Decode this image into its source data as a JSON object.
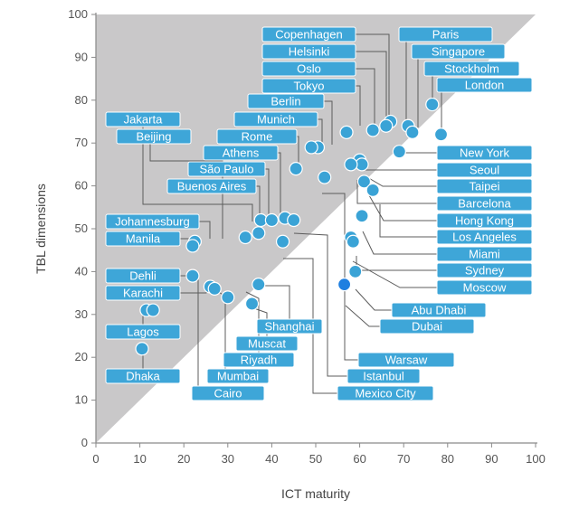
{
  "chart_data": {
    "type": "scatter",
    "xlabel": "ICT maturity",
    "ylabel": "TBL dimensions",
    "xlim": [
      0,
      100
    ],
    "ylim": [
      0,
      100
    ],
    "xticks": [
      0,
      10,
      20,
      30,
      40,
      50,
      60,
      70,
      80,
      90,
      100
    ],
    "yticks": [
      0,
      10,
      20,
      30,
      40,
      50,
      60,
      70,
      80,
      90,
      100
    ],
    "grid": false,
    "shaded_region": "above diagonal y = x (grey triangle)",
    "colors": {
      "point": "#3aa3d6",
      "label_fill": "#3ea6d8",
      "highlight_point": "#1f7fe0",
      "region": "#c9c8c9",
      "axis": "#8a8a8a",
      "connector": "#5c5c5c"
    },
    "points": [
      {
        "name": "Copenhagen",
        "x": 67,
        "y": 75
      },
      {
        "name": "Helsinki",
        "x": 66,
        "y": 74
      },
      {
        "name": "Oslo",
        "x": 63,
        "y": 73
      },
      {
        "name": "Tokyo",
        "x": 57,
        "y": 72.5
      },
      {
        "name": "Berlin",
        "x": 50.5,
        "y": 69
      },
      {
        "name": "Munich",
        "x": 49,
        "y": 69
      },
      {
        "name": "Rome",
        "x": 45.5,
        "y": 64
      },
      {
        "name": "Athens",
        "x": 37.5,
        "y": 52
      },
      {
        "name": "São Paulo",
        "x": 40,
        "y": 52
      },
      {
        "name": "Buenos Aires",
        "x": 43,
        "y": 52.5
      },
      {
        "name": "Jakarta",
        "x": 37,
        "y": 49
      },
      {
        "name": "Beijing",
        "x": 34,
        "y": 48
      },
      {
        "name": "Johannesburg",
        "x": 22.5,
        "y": 47
      },
      {
        "name": "Manila",
        "x": 22,
        "y": 46
      },
      {
        "name": "Paris",
        "x": 71,
        "y": 74
      },
      {
        "name": "Singapore",
        "x": 72,
        "y": 72.5
      },
      {
        "name": "Stockholm",
        "x": 76.5,
        "y": 79
      },
      {
        "name": "London",
        "x": 78.5,
        "y": 72
      },
      {
        "name": "New York",
        "x": 69,
        "y": 68
      },
      {
        "name": "Seoul",
        "x": 60,
        "y": 66
      },
      {
        "name": "Taipei",
        "x": 60.5,
        "y": 65
      },
      {
        "name": "Barcelona",
        "x": 58,
        "y": 65
      },
      {
        "name": "Hong Kong",
        "x": 61,
        "y": 61
      },
      {
        "name": "Los Angeles",
        "x": 63,
        "y": 59
      },
      {
        "name": "Miami",
        "x": 60.5,
        "y": 53
      },
      {
        "name": "Sydney",
        "x": 58,
        "y": 48
      },
      {
        "name": "Moscow",
        "x": 58.5,
        "y": 47
      },
      {
        "name": "Abu Dhabi",
        "x": 59,
        "y": 40
      },
      {
        "name": "Dubai",
        "x": 56.5,
        "y": 37
      },
      {
        "name": "Warsaw",
        "x": 52,
        "y": 62
      },
      {
        "name": "Istanbul",
        "x": 45,
        "y": 52
      },
      {
        "name": "Mexico City",
        "x": 42.5,
        "y": 47
      },
      {
        "name": "Dehli",
        "x": 22,
        "y": 39
      },
      {
        "name": "Karachi",
        "x": 26,
        "y": 36.5
      },
      {
        "name": "Lagos",
        "x": 11.5,
        "y": 31
      },
      {
        "name": "Dhaka",
        "x": 10.5,
        "y": 22
      },
      {
        "name": "Shanghai",
        "x": 37,
        "y": 37
      },
      {
        "name": "Muscat",
        "x": 35.5,
        "y": 32.5
      },
      {
        "name": "Riyadh",
        "x": 30,
        "y": 34
      },
      {
        "name": "Mumbai",
        "x": 27,
        "y": 36
      },
      {
        "name": "Cairo",
        "x": 13,
        "y": 31
      }
    ]
  }
}
